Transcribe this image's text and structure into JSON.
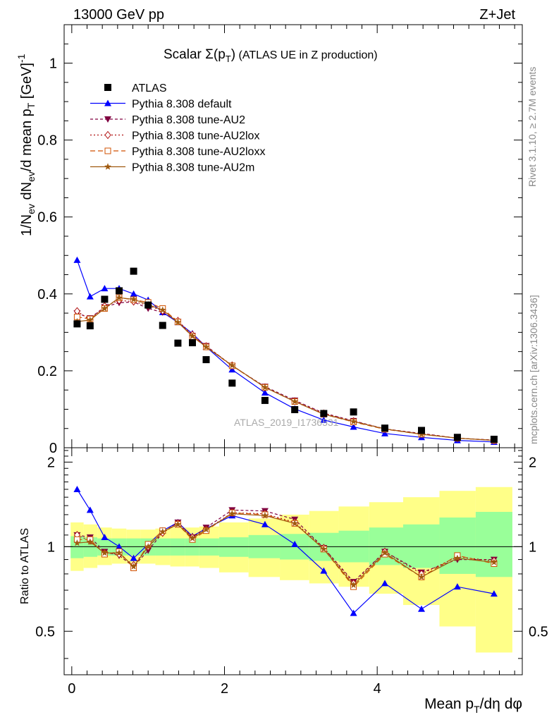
{
  "header": {
    "left": "13000 GeV pp",
    "right": "Z+Jet"
  },
  "side_labels": {
    "rivet": "Rivet 3.1.10, ≥ 2.7M events",
    "mcplots": "mcplots.cern.ch [arXiv:1306.3436]"
  },
  "chart_data": {
    "type": "scatter",
    "title": "Scalar Σ(p_T) (ATLAS UE in Z production)",
    "watermark": "ATLAS_2019_I1736531",
    "xlabel": "Mean p_T/dη dφ",
    "ylabel": "1/N_ev dN_ev/d mean p_T [GeV]^-1",
    "ratio_ylabel": "Ratio to ATLAS",
    "xlim": [
      -0.1,
      5.9
    ],
    "ylim": [
      0,
      1.1
    ],
    "ratio_ylim": [
      0.35,
      2.25
    ],
    "x_ticks": [
      "0",
      "2",
      "4"
    ],
    "y_ticks": [
      "0",
      "0.2",
      "0.4",
      "0.6",
      "0.8",
      "1"
    ],
    "ratio_ticks": [
      "0.5",
      "1",
      "2"
    ],
    "legend_position": "top-left",
    "x": [
      0.07,
      0.24,
      0.43,
      0.62,
      0.81,
      1.0,
      1.19,
      1.39,
      1.58,
      1.76,
      2.1,
      2.53,
      2.92,
      3.3,
      3.69,
      4.1,
      4.58,
      5.05,
      5.53
    ],
    "data": {
      "name": "ATLAS",
      "values": [
        0.322,
        0.317,
        0.386,
        0.408,
        0.459,
        0.371,
        0.318,
        0.272,
        0.273,
        0.229,
        0.168,
        0.123,
        0.099,
        0.089,
        0.093,
        0.051,
        0.045,
        0.027,
        0.022
      ],
      "band_inner": [
        [
          0.91,
          1.09
        ],
        [
          0.92,
          1.08
        ],
        [
          0.93,
          1.07
        ],
        [
          0.93,
          1.07
        ],
        [
          0.93,
          1.07
        ],
        [
          0.93,
          1.07
        ],
        [
          0.93,
          1.07
        ],
        [
          0.93,
          1.07
        ],
        [
          0.93,
          1.07
        ],
        [
          0.93,
          1.07
        ],
        [
          0.92,
          1.08
        ],
        [
          0.91,
          1.1
        ],
        [
          0.9,
          1.11
        ],
        [
          0.89,
          1.12
        ],
        [
          0.88,
          1.14
        ],
        [
          0.86,
          1.17
        ],
        [
          0.84,
          1.2
        ],
        [
          0.8,
          1.27
        ],
        [
          0.78,
          1.33
        ]
      ],
      "band_outer": [
        [
          0.82,
          1.22
        ],
        [
          0.84,
          1.2
        ],
        [
          0.86,
          1.17
        ],
        [
          0.87,
          1.16
        ],
        [
          0.87,
          1.15
        ],
        [
          0.87,
          1.15
        ],
        [
          0.86,
          1.16
        ],
        [
          0.85,
          1.17
        ],
        [
          0.85,
          1.17
        ],
        [
          0.84,
          1.18
        ],
        [
          0.81,
          1.22
        ],
        [
          0.78,
          1.26
        ],
        [
          0.76,
          1.3
        ],
        [
          0.74,
          1.34
        ],
        [
          0.72,
          1.39
        ],
        [
          0.68,
          1.44
        ],
        [
          0.62,
          1.5
        ],
        [
          0.52,
          1.58
        ],
        [
          0.42,
          1.63
        ]
      ]
    },
    "series": [
      {
        "name": "Pythia 8.308 default",
        "color": "#0000ff",
        "marker": "triangle",
        "dash": "",
        "values": [
          0.488,
          0.393,
          0.414,
          0.414,
          0.4,
          0.384,
          0.352,
          0.326,
          0.297,
          0.262,
          0.203,
          0.143,
          0.101,
          0.072,
          0.054,
          0.037,
          0.027,
          0.019,
          0.015
        ],
        "ratio": [
          1.6,
          1.35,
          1.08,
          1.0,
          0.91,
          1.02,
          1.14,
          1.22,
          1.09,
          1.16,
          1.29,
          1.2,
          1.02,
          0.82,
          0.58,
          0.74,
          0.6,
          0.72,
          0.68
        ]
      },
      {
        "name": "Pythia 8.308 tune-AU2",
        "color": "#800040",
        "marker": "triangle-down",
        "dash": "4,3",
        "values": [
          0.35,
          0.337,
          0.366,
          0.377,
          0.379,
          0.362,
          0.352,
          0.328,
          0.291,
          0.265,
          0.213,
          0.159,
          0.123,
          0.09,
          0.07,
          0.049,
          0.037,
          0.025,
          0.02
        ],
        "ratio": [
          1.1,
          1.08,
          0.96,
          0.93,
          0.85,
          0.97,
          1.12,
          1.22,
          1.08,
          1.17,
          1.35,
          1.34,
          1.25,
          0.99,
          0.75,
          0.96,
          0.81,
          0.9,
          0.9
        ]
      },
      {
        "name": "Pythia 8.308 tune-AU2lox",
        "color": "#b01010",
        "marker": "diamond",
        "dash": "2,3",
        "values": [
          0.355,
          0.333,
          0.368,
          0.383,
          0.38,
          0.37,
          0.356,
          0.33,
          0.294,
          0.264,
          0.214,
          0.157,
          0.121,
          0.089,
          0.069,
          0.049,
          0.036,
          0.025,
          0.019
        ],
        "ratio": [
          1.1,
          1.05,
          0.95,
          0.94,
          0.86,
          1.0,
          1.12,
          1.21,
          1.08,
          1.15,
          1.32,
          1.31,
          1.22,
          0.99,
          0.74,
          0.96,
          0.8,
          0.92,
          0.89
        ]
      },
      {
        "name": "Pythia 8.308 tune-AU2loxx",
        "color": "#d05000",
        "marker": "square",
        "dash": "7,4",
        "values": [
          0.34,
          0.335,
          0.362,
          0.39,
          0.385,
          0.378,
          0.362,
          0.327,
          0.289,
          0.262,
          0.213,
          0.157,
          0.12,
          0.087,
          0.067,
          0.048,
          0.035,
          0.025,
          0.019
        ],
        "ratio": [
          1.06,
          1.06,
          0.94,
          0.96,
          0.84,
          1.02,
          1.14,
          1.2,
          1.06,
          1.14,
          1.32,
          1.3,
          1.21,
          0.98,
          0.72,
          0.94,
          0.78,
          0.93,
          0.87
        ]
      },
      {
        "name": "Pythia 8.308 tune-AU2m",
        "color": "#a05a10",
        "marker": "star",
        "dash": "",
        "values": [
          0.328,
          0.332,
          0.362,
          0.39,
          0.386,
          0.372,
          0.358,
          0.326,
          0.29,
          0.262,
          0.214,
          0.157,
          0.12,
          0.087,
          0.068,
          0.049,
          0.035,
          0.025,
          0.019
        ],
        "ratio": [
          1.03,
          1.04,
          0.95,
          0.95,
          0.85,
          1.0,
          1.13,
          1.2,
          1.07,
          1.15,
          1.31,
          1.29,
          1.21,
          0.98,
          0.73,
          0.95,
          0.78,
          0.91,
          0.88
        ]
      }
    ]
  }
}
